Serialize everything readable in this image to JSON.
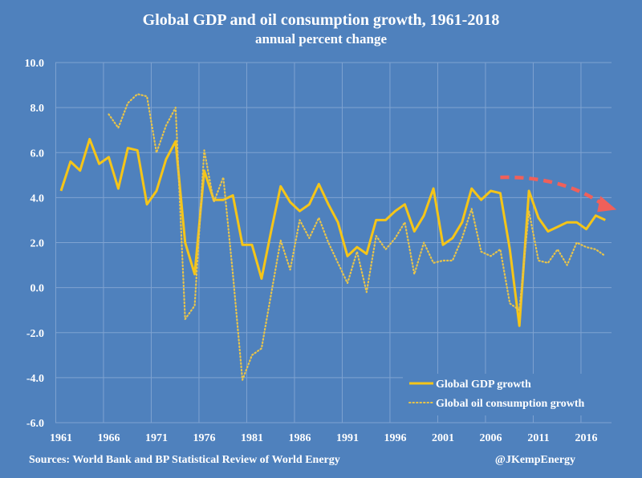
{
  "chart_data": {
    "type": "line",
    "title": "Global GDP and oil consumption growth, 1961-2018",
    "subtitle": "annual percent change",
    "xlabel": "",
    "ylabel": "",
    "ylim": [
      -6,
      10
    ],
    "y_ticks": [
      "10.0",
      "8.0",
      "6.0",
      "4.0",
      "2.0",
      "0.0",
      "-2.0",
      "-4.0",
      "-6.0"
    ],
    "x_ticks": [
      "1961",
      "1966",
      "1971",
      "1976",
      "1981",
      "1986",
      "1991",
      "1996",
      "2001",
      "2006",
      "2011",
      "2016"
    ],
    "grid": true,
    "legend_position": "bottom-right",
    "series": [
      {
        "name": "Global GDP growth",
        "style": "solid",
        "color": "#f5c518",
        "start_year": 1961,
        "values": [
          4.3,
          5.6,
          5.2,
          6.6,
          5.5,
          5.8,
          4.4,
          6.2,
          6.1,
          3.7,
          4.3,
          5.7,
          6.5,
          2.0,
          0.6,
          5.2,
          3.9,
          3.9,
          4.1,
          1.9,
          1.9,
          0.4,
          2.5,
          4.5,
          3.8,
          3.4,
          3.7,
          4.6,
          3.7,
          2.9,
          1.4,
          1.8,
          1.5,
          3.0,
          3.0,
          3.4,
          3.7,
          2.5,
          3.2,
          4.4,
          1.9,
          2.2,
          2.9,
          4.4,
          3.9,
          4.3,
          4.2,
          1.7,
          -1.7,
          4.3,
          3.1,
          2.5,
          2.7,
          2.9,
          2.9,
          2.6,
          3.2,
          3.0
        ]
      },
      {
        "name": "Global oil consumption growth",
        "style": "dotted",
        "color": "#e8c44a",
        "start_year": 1966,
        "values": [
          7.7,
          7.1,
          8.2,
          8.6,
          8.5,
          6.0,
          7.2,
          8.0,
          -1.4,
          -0.8,
          6.1,
          3.8,
          4.9,
          0.6,
          -4.1,
          -3.0,
          -2.7,
          -0.3,
          2.1,
          0.8,
          3.0,
          2.2,
          3.1,
          2.0,
          1.1,
          0.2,
          1.6,
          -0.2,
          2.3,
          1.7,
          2.2,
          2.9,
          0.6,
          2.0,
          1.1,
          1.2,
          1.2,
          2.2,
          3.5,
          1.6,
          1.4,
          1.7,
          -0.7,
          -1.0,
          3.4,
          1.2,
          1.1,
          1.7,
          1.0,
          2.0,
          1.8,
          1.7,
          1.4
        ]
      }
    ],
    "annotations": [
      {
        "type": "dashed-arrow",
        "description": "downward trend arrow",
        "color": "#f0605a",
        "from_year": 2007,
        "from_value": 4.9,
        "to_year": 2019,
        "to_value": 3.5
      }
    ]
  },
  "footer": {
    "source": "Sources: World Bank and BP Statistical Review of World Energy",
    "credit": "@JKempEnergy"
  },
  "colors": {
    "background": "#4f81bd",
    "grid": "#7fa3d1"
  }
}
